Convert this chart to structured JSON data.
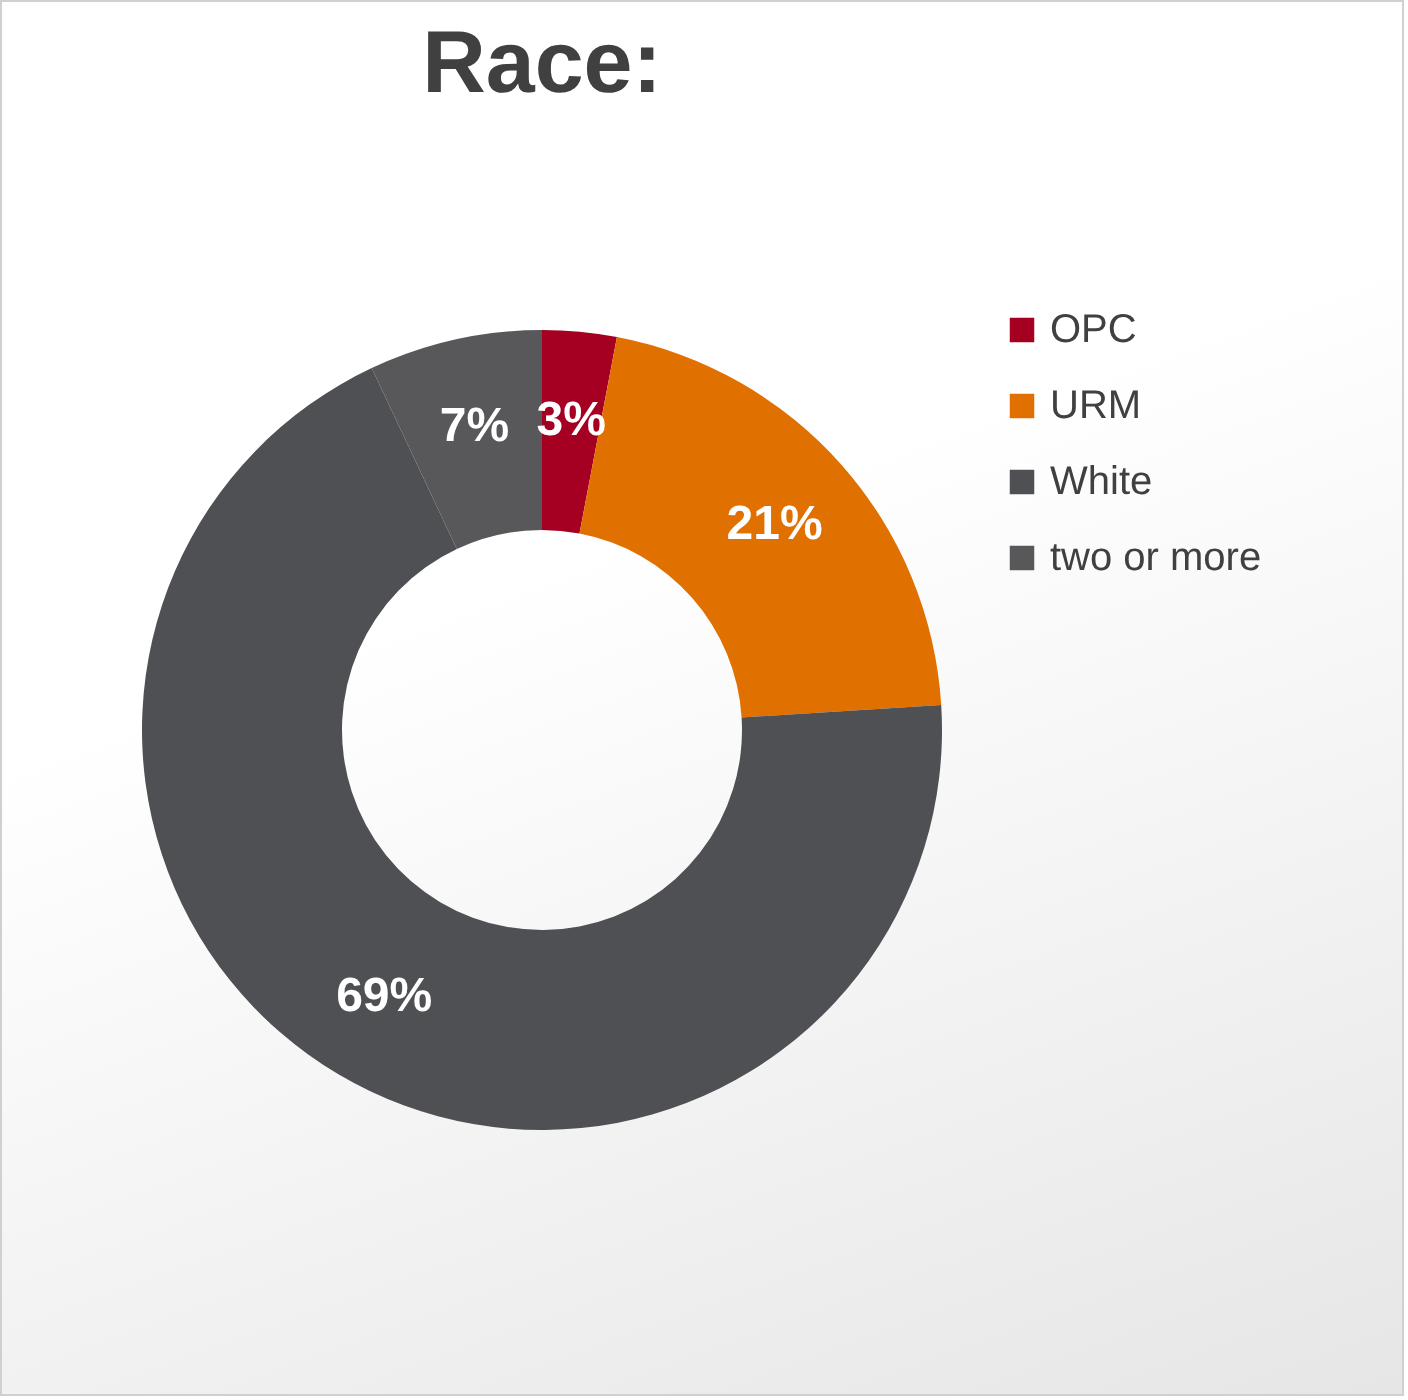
{
  "chart_data": {
    "type": "donut",
    "title": "Race:",
    "categories": [
      "OPC",
      "URM",
      "White",
      "two or more"
    ],
    "values": [
      3,
      21,
      69,
      7
    ],
    "colors": [
      "#a50021",
      "#e07000",
      "#4f5054",
      "#58585a"
    ],
    "value_labels": [
      "3%",
      "21%",
      "69%",
      "7%"
    ],
    "legend": "right"
  }
}
